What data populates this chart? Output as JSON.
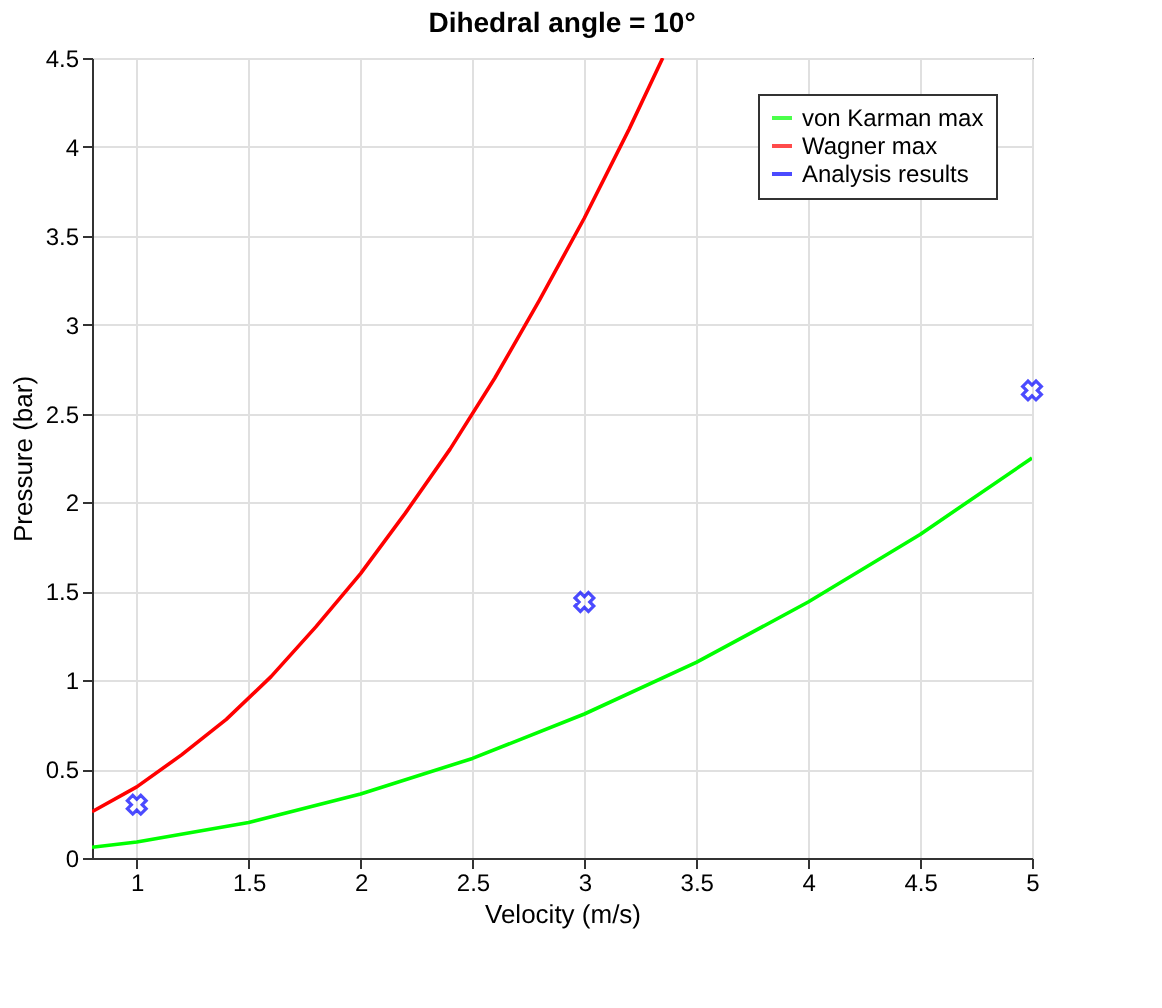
{
  "chart_data": {
    "type": "line",
    "title": "Dihedral angle = 10°",
    "xlabel": "Velocity (m/s)",
    "ylabel": "Pressure (bar)",
    "xlim": [
      0.8,
      5
    ],
    "xticks": [
      1,
      1.5,
      2,
      2.5,
      3,
      3.5,
      4,
      4.5,
      5
    ],
    "ylim": [
      0,
      4.5
    ],
    "yticks": [
      0,
      0.5,
      1,
      1.5,
      2,
      2.5,
      3,
      3.5,
      4,
      4.5
    ],
    "grid": true,
    "legend": "top right",
    "series": [
      {
        "name": "von Karman max",
        "color": "#00ff00",
        "x": [
          0.8,
          1,
          1.5,
          2,
          2.5,
          3,
          3.5,
          4,
          4.5,
          5
        ],
        "values": [
          0.06,
          0.09,
          0.2,
          0.36,
          0.56,
          0.81,
          1.1,
          1.44,
          1.82,
          2.25
        ]
      },
      {
        "name": "Wagner max",
        "color": "#ff0000",
        "x": [
          0.8,
          1,
          1.2,
          1.4,
          1.6,
          1.8,
          2,
          2.2,
          2.4,
          2.6,
          2.8,
          3,
          3.2,
          3.35
        ],
        "values": [
          0.26,
          0.4,
          0.58,
          0.78,
          1.02,
          1.3,
          1.6,
          1.94,
          2.3,
          2.7,
          3.14,
          3.6,
          4.1,
          4.5
        ]
      },
      {
        "name": "Analysis results",
        "type": "scatter",
        "marker": "cross",
        "color": "#0000ff",
        "x": [
          1,
          3,
          5
        ],
        "values": [
          0.3,
          1.44,
          2.63
        ]
      }
    ]
  }
}
